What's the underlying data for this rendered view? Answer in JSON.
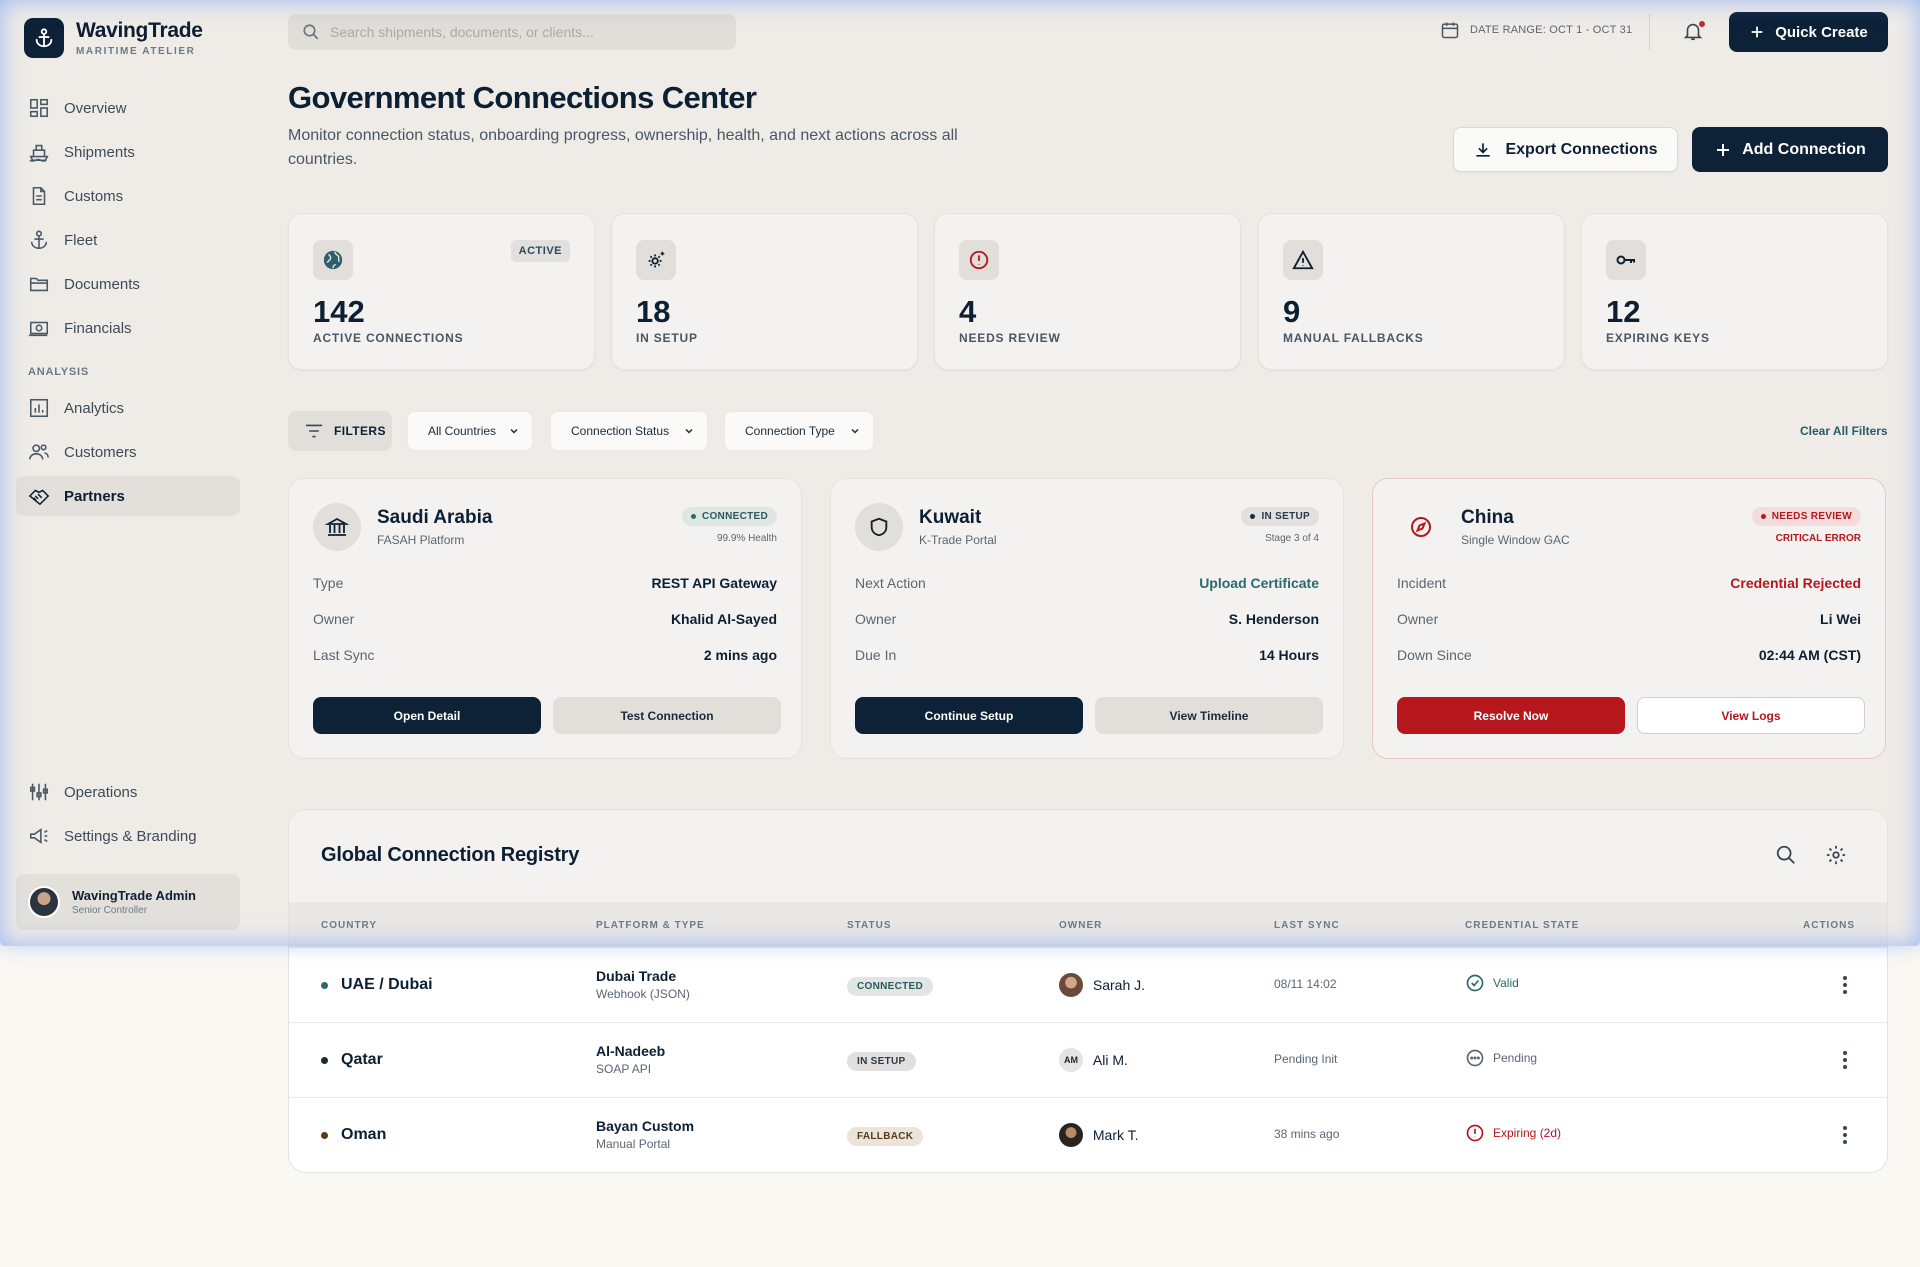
{
  "brand": {
    "name": "WavingTrade",
    "subtitle": "MARITIME ATELIER"
  },
  "sidebar": {
    "items": [
      {
        "label": "Overview",
        "icon": "grid-icon"
      },
      {
        "label": "Shipments",
        "icon": "ship-icon"
      },
      {
        "label": "Customs",
        "icon": "document-icon"
      },
      {
        "label": "Fleet",
        "icon": "anchor-icon"
      },
      {
        "label": "Documents",
        "icon": "folder-icon"
      },
      {
        "label": "Financials",
        "icon": "money-icon"
      }
    ],
    "section_label": "ANALYSIS",
    "analysis_items": [
      {
        "label": "Analytics",
        "icon": "chart-icon"
      },
      {
        "label": "Customers",
        "icon": "users-icon"
      },
      {
        "label": "Partners",
        "icon": "handshake-icon",
        "active": true
      }
    ],
    "bottom_items": [
      {
        "label": "Operations",
        "icon": "sliders-icon"
      },
      {
        "label": "Settings & Branding",
        "icon": "megaphone-icon"
      }
    ],
    "user": {
      "name": "WavingTrade Admin",
      "role": "Senior Controller"
    }
  },
  "topbar": {
    "search_placeholder": "Search shipments, documents, or clients...",
    "date_range": "DATE RANGE: OCT 1 - OCT 31",
    "quick_create": "Quick Create"
  },
  "header": {
    "title": "Government Connections Center",
    "description": "Monitor connection status, onboarding progress, ownership, health, and next actions across all countries.",
    "export_label": "Export Connections",
    "add_label": "Add Connection"
  },
  "stats": [
    {
      "value": "142",
      "label": "ACTIVE CONNECTIONS",
      "badge": "ACTIVE",
      "icon": "globe-icon"
    },
    {
      "value": "18",
      "label": "IN SETUP",
      "icon": "gear-sparkle-icon"
    },
    {
      "value": "4",
      "label": "NEEDS REVIEW",
      "icon": "alert-circle-icon"
    },
    {
      "value": "9",
      "label": "MANUAL FALLBACKS",
      "icon": "warning-triangle-icon"
    },
    {
      "value": "12",
      "label": "EXPIRING KEYS",
      "icon": "key-icon"
    }
  ],
  "filters": {
    "label": "FILTERS",
    "countries": "All Countries",
    "status": "Connection Status",
    "type": "Connection Type",
    "clear": "Clear All Filters"
  },
  "cards": [
    {
      "title": "Saudi Arabia",
      "subtitle": "FASAH Platform",
      "status": "CONNECTED",
      "meta": "99.9% Health",
      "rows": [
        {
          "k": "Type",
          "v": "REST API Gateway"
        },
        {
          "k": "Owner",
          "v": "Khalid Al-Sayed"
        },
        {
          "k": "Last Sync",
          "v": "2 mins ago"
        }
      ],
      "primary": "Open Detail",
      "secondary": "Test Connection"
    },
    {
      "title": "Kuwait",
      "subtitle": "K-Trade Portal",
      "status": "IN SETUP",
      "meta": "Stage 3 of 4",
      "rows": [
        {
          "k": "Next Action",
          "v": "Upload Certificate"
        },
        {
          "k": "Owner",
          "v": "S. Henderson"
        },
        {
          "k": "Due In",
          "v": "14 Hours"
        }
      ],
      "primary": "Continue Setup",
      "secondary": "View Timeline"
    },
    {
      "title": "China",
      "subtitle": "Single Window GAC",
      "status": "NEEDS REVIEW",
      "meta": "CRITICAL ERROR",
      "rows": [
        {
          "k": "Incident",
          "v": "Credential Rejected"
        },
        {
          "k": "Owner",
          "v": "Li Wei"
        },
        {
          "k": "Down Since",
          "v": "02:44 AM (CST)"
        }
      ],
      "primary": "Resolve Now",
      "secondary": "View Logs"
    }
  ],
  "registry": {
    "title": "Global Connection Registry",
    "columns": [
      "COUNTRY",
      "PLATFORM & TYPE",
      "STATUS",
      "OWNER",
      "LAST SYNC",
      "CREDENTIAL STATE",
      "ACTIONS"
    ],
    "rows": [
      {
        "country": "UAE / Dubai",
        "platform": "Dubai Trade",
        "type": "Webhook (JSON)",
        "status": "CONNECTED",
        "owner": "Sarah J.",
        "initials": "",
        "last_sync": "08/11 14:02",
        "credential": "Valid"
      },
      {
        "country": "Qatar",
        "platform": "Al-Nadeeb",
        "type": "SOAP API",
        "status": "IN SETUP",
        "owner": "Ali M.",
        "initials": "AM",
        "last_sync": "Pending Init",
        "credential": "Pending"
      },
      {
        "country": "Oman",
        "platform": "Bayan Custom",
        "type": "Manual Portal",
        "status": "FALLBACK",
        "owner": "Mark T.",
        "initials": "",
        "last_sync": "38 mins ago",
        "credential": "Expiring (2d)"
      }
    ]
  },
  "colors": {
    "primary": "#0d2137",
    "danger": "#b5171c",
    "success": "#2a6a6a",
    "background": "#efece7"
  }
}
